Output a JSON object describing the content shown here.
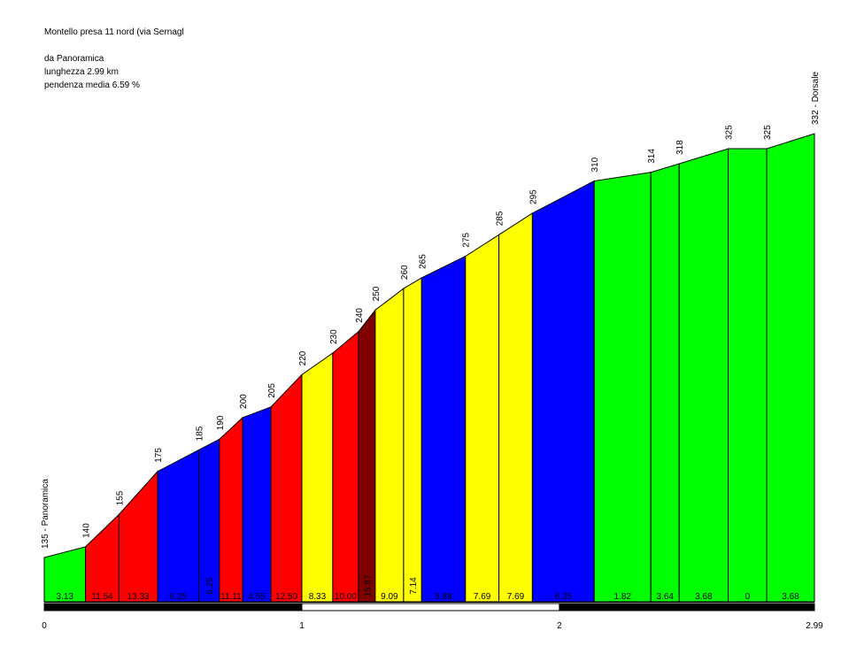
{
  "header": {
    "title": "Montello presa 11 nord (via Sernagl",
    "start": "da Panoramica",
    "length": "lunghezza 2.99 km",
    "gradient": "pendenza media 6.59 %"
  },
  "chart_data": {
    "type": "area",
    "title": "Montello presa 11 nord (via Sernagl",
    "xlabel": "",
    "ylabel": "",
    "xlim": [
      0,
      2.99
    ],
    "ylim": [
      135,
      332
    ],
    "x_ticks": [
      {
        "x": 0,
        "label": "0"
      },
      {
        "x": 1,
        "label": "1"
      },
      {
        "x": 2,
        "label": "2"
      },
      {
        "x": 2.99,
        "label": "2.99"
      }
    ],
    "points": [
      {
        "x": 0.0,
        "y": 135,
        "label": "135 - Panoramica"
      },
      {
        "x": 0.16,
        "y": 140,
        "label": "140"
      },
      {
        "x": 0.29,
        "y": 155,
        "label": "155"
      },
      {
        "x": 0.44,
        "y": 175,
        "label": "175"
      },
      {
        "x": 0.6,
        "y": 185,
        "label": "185"
      },
      {
        "x": 0.68,
        "y": 190,
        "label": "190"
      },
      {
        "x": 0.77,
        "y": 200,
        "label": "200"
      },
      {
        "x": 0.88,
        "y": 205,
        "label": "205"
      },
      {
        "x": 1.0,
        "y": 220,
        "label": "220"
      },
      {
        "x": 1.12,
        "y": 230,
        "label": "230"
      },
      {
        "x": 1.22,
        "y": 240,
        "label": "240"
      },
      {
        "x": 1.285,
        "y": 250,
        "label": "250"
      },
      {
        "x": 1.395,
        "y": 260,
        "label": "260"
      },
      {
        "x": 1.465,
        "y": 265,
        "label": "265"
      },
      {
        "x": 1.635,
        "y": 275,
        "label": "275"
      },
      {
        "x": 1.765,
        "y": 285,
        "label": "285"
      },
      {
        "x": 1.895,
        "y": 295,
        "label": "295"
      },
      {
        "x": 2.135,
        "y": 310,
        "label": "310"
      },
      {
        "x": 2.355,
        "y": 314,
        "label": "314"
      },
      {
        "x": 2.465,
        "y": 318,
        "label": "318"
      },
      {
        "x": 2.655,
        "y": 325,
        "label": "325"
      },
      {
        "x": 2.805,
        "y": 325,
        "label": "325"
      },
      {
        "x": 2.99,
        "y": 332,
        "label": "332 - Dorsale"
      }
    ],
    "segments": [
      {
        "gradient": "3.13",
        "color": "#00ff00"
      },
      {
        "gradient": "11.54",
        "color": "#ff0000"
      },
      {
        "gradient": "13.33",
        "color": "#ff0000"
      },
      {
        "gradient": "6.25",
        "color": "#0000ff"
      },
      {
        "gradient": "6.25",
        "color": "#0000ff"
      },
      {
        "gradient": "11.11",
        "color": "#ff0000"
      },
      {
        "gradient": "4.55",
        "color": "#0000ff"
      },
      {
        "gradient": "12.50",
        "color": "#ff0000"
      },
      {
        "gradient": "8.33",
        "color": "#ffff00"
      },
      {
        "gradient": "10.00",
        "color": "#ff0000"
      },
      {
        "gradient": "15.87",
        "color": "#800000"
      },
      {
        "gradient": "9.09",
        "color": "#ffff00"
      },
      {
        "gradient": "7.14",
        "color": "#ffff00"
      },
      {
        "gradient": "5.88",
        "color": "#0000ff"
      },
      {
        "gradient": "7.69",
        "color": "#ffff00"
      },
      {
        "gradient": "7.69",
        "color": "#ffff00"
      },
      {
        "gradient": "6.25",
        "color": "#0000ff"
      },
      {
        "gradient": "1.82",
        "color": "#00ff00"
      },
      {
        "gradient": "3.64",
        "color": "#00ff00"
      },
      {
        "gradient": "3.68",
        "color": "#00ff00"
      },
      {
        "gradient": "0",
        "color": "#00ff00"
      },
      {
        "gradient": "3.68",
        "color": "#00ff00"
      }
    ]
  }
}
